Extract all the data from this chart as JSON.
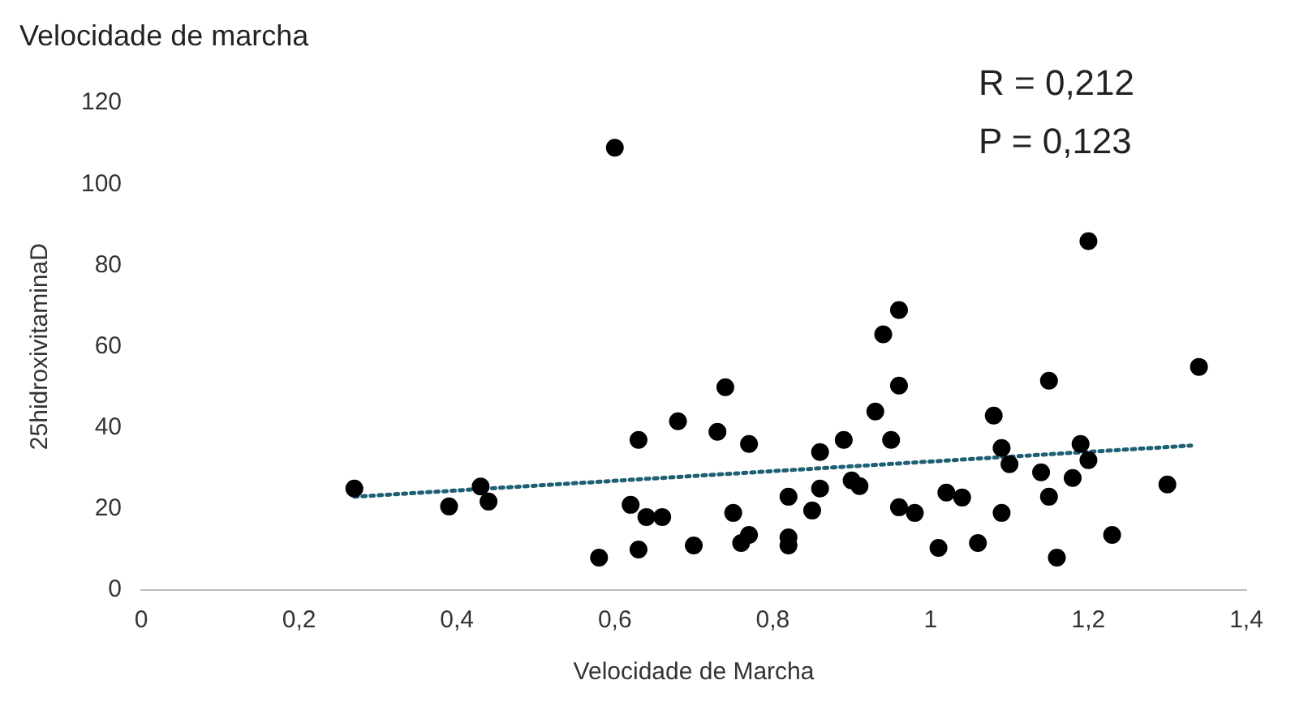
{
  "chart_data": {
    "type": "scatter",
    "title": "Velocidade de marcha",
    "xlabel": "Velocidade de Marcha",
    "ylabel": "25hidroxivitaminaD",
    "annotations": [
      "R = 0,212",
      "P = 0,123"
    ],
    "series": [
      {
        "type": "scatter",
        "color": "#000000",
        "marker": "circle",
        "x": [
          0.27,
          0.39,
          0.43,
          0.44,
          0.6,
          0.58,
          0.62,
          0.63,
          0.63,
          0.64,
          0.66,
          0.68,
          0.7,
          0.73,
          0.74,
          0.75,
          0.77,
          0.77,
          0.76,
          0.82,
          0.82,
          0.82,
          0.85,
          0.86,
          0.86,
          0.89,
          0.9,
          0.91,
          0.93,
          0.94,
          0.96,
          0.96,
          0.95,
          0.96,
          0.98,
          1.01,
          1.02,
          1.04,
          1.06,
          1.08,
          1.09,
          1.09,
          1.1,
          1.14,
          1.15,
          1.15,
          1.16,
          1.18,
          1.19,
          1.2,
          1.2,
          1.23,
          1.3,
          1.34
        ],
        "values": [
          25,
          20.6,
          25.5,
          21.8,
          109,
          8,
          21,
          37,
          10,
          18,
          18,
          41.6,
          11,
          39,
          50,
          19,
          36,
          13.6,
          11.6,
          23,
          13,
          11,
          19.6,
          34,
          25,
          37,
          27,
          25.6,
          44,
          63,
          69,
          50.4,
          37,
          20.4,
          19,
          10.4,
          24,
          22.8,
          11.6,
          43,
          19,
          35,
          31,
          29,
          51.6,
          23,
          8,
          27.6,
          36,
          86,
          32,
          13.6,
          26,
          55
        ]
      },
      {
        "type": "line",
        "color": "#1f5f73",
        "marker": "none",
        "line_style": "dotted",
        "x": [
          0.27,
          1.33
        ],
        "values": [
          23,
          35.6
        ]
      }
    ],
    "xlim": [
      0,
      1.4
    ],
    "xticks": [
      {
        "value": 0,
        "label": "0"
      },
      {
        "value": 0.2,
        "label": "0,2"
      },
      {
        "value": 0.4,
        "label": "0,4"
      },
      {
        "value": 0.6,
        "label": "0,6"
      },
      {
        "value": 0.8,
        "label": "0,8"
      },
      {
        "value": 1,
        "label": "1"
      },
      {
        "value": 1.2,
        "label": "1,2"
      },
      {
        "value": 1.4,
        "label": "1,4"
      }
    ],
    "ylim": [
      0,
      120
    ],
    "yticks": [
      0,
      20,
      40,
      60,
      80,
      100,
      120
    ],
    "grid": false,
    "legend": false
  }
}
